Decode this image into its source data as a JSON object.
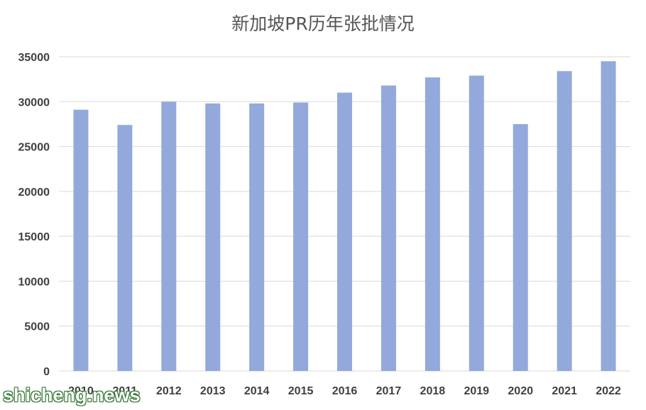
{
  "chart_data": {
    "type": "bar",
    "title": "新加坡PR历年张批情况",
    "xlabel": "",
    "ylabel": "",
    "categories": [
      "2010",
      "2011",
      "2012",
      "2013",
      "2014",
      "2015",
      "2016",
      "2017",
      "2018",
      "2019",
      "2020",
      "2021",
      "2022"
    ],
    "values": [
      29100,
      27400,
      30000,
      29800,
      29800,
      29900,
      31000,
      31800,
      32700,
      32900,
      27500,
      33400,
      34500
    ],
    "ylim": [
      0,
      35000
    ],
    "yticks": [
      "0",
      "5000",
      "10000",
      "15000",
      "20000",
      "25000",
      "30000",
      "35000"
    ],
    "grid": true,
    "legend": "none",
    "bar_color": "#93a9dc",
    "grid_color": "#d9d9d9"
  },
  "watermark": {
    "text": "shicheng.news"
  }
}
